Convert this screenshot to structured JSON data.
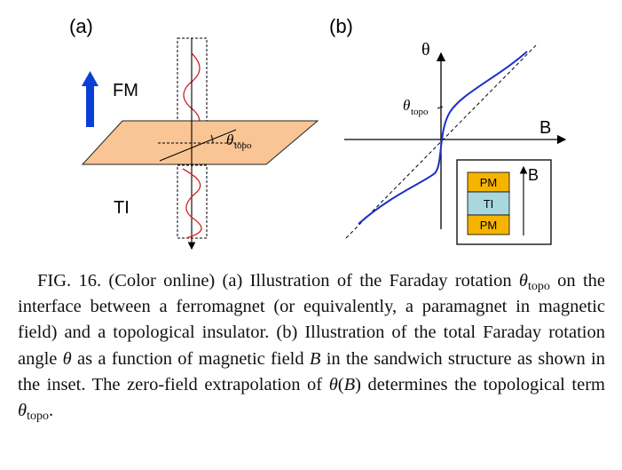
{
  "panel_a": {
    "label": "(a)",
    "fm_label": "FM",
    "ti_label": "TI",
    "theta_symbol": "θ",
    "theta_sub": "topo"
  },
  "panel_b": {
    "label": "(b)",
    "y_axis_label": "θ",
    "x_axis_label": "B",
    "theta_symbol": "θ",
    "theta_sub": "topo",
    "inset": {
      "top_layer": "PM",
      "middle_layer": "TI",
      "bottom_layer": "PM",
      "field_label": "B"
    }
  },
  "caption": {
    "prefix": "FIG. 16. (Color online) (a) Illustration of the Faraday rotation",
    "theta_symbol": "θ",
    "theta_sub": "topo",
    "part2": " on the interface between a ferromagnet (or equivalently, a paramagnet in magnetic field) and a topological insulator. (b) Illustration of the total Faraday rotation angle ",
    "theta_var": "θ",
    "part3": " as a function of magnetic field ",
    "b_var": "B",
    "part4": " in the sandwich structure as shown in the inset. The zero-field extrapolation of ",
    "theta_of_b": "θ",
    "paren_open": "(",
    "b_var2": "B",
    "paren_close": ")",
    "part5": " determines the topological term ",
    "theta_end_symbol": "θ",
    "theta_end_sub": "topo",
    "end_period": "."
  },
  "colors": {
    "slab": "#f9c594",
    "wave": "#d42020",
    "fm_arrow": "#0a3fd6",
    "curve": "#1c2fc8",
    "pm_layer": "#f5b400",
    "ti_layer": "#a8d8dd"
  }
}
